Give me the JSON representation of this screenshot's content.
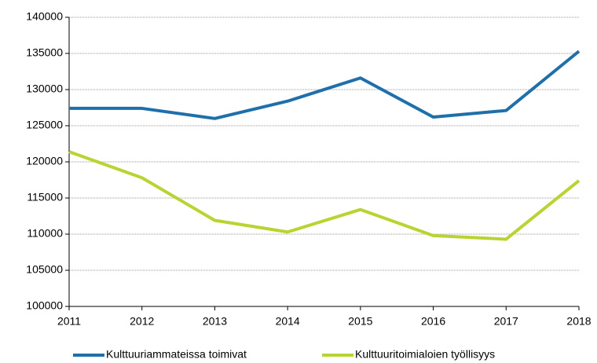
{
  "chart_data": {
    "type": "line",
    "x": [
      2011,
      2012,
      2013,
      2014,
      2015,
      2016,
      2017,
      2018
    ],
    "series": [
      {
        "name": "Kulttuuriammateissa toimivat",
        "color": "#1f6fab",
        "values": [
          127400,
          127400,
          126000,
          128400,
          131600,
          126200,
          127100,
          135300
        ]
      },
      {
        "name": "Kulttuuritoimialoien työllisyys",
        "color": "#b7d433",
        "values": [
          121400,
          117800,
          111900,
          110300,
          113400,
          109800,
          109300,
          117400
        ]
      }
    ],
    "xlim": [
      2011,
      2018
    ],
    "xticks": [
      2011,
      2012,
      2013,
      2014,
      2015,
      2016,
      2017,
      2018
    ],
    "ylim": [
      100000,
      140000
    ],
    "yticks": [
      100000,
      105000,
      110000,
      115000,
      120000,
      125000,
      130000,
      135000,
      140000
    ],
    "grid": true,
    "legend": "bottom"
  }
}
